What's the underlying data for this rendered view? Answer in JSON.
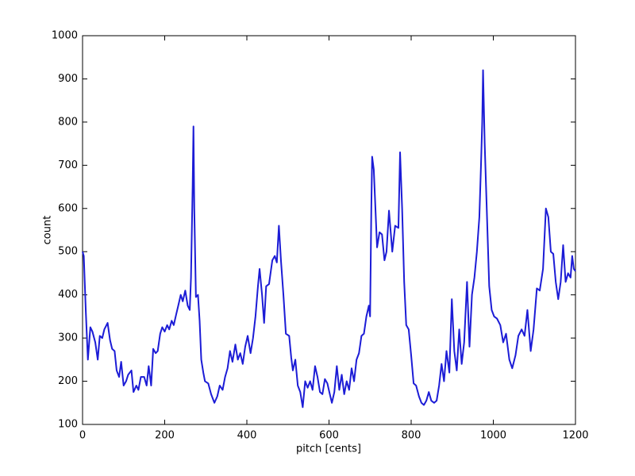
{
  "chart_data": {
    "type": "line",
    "x_label": "pitch [cents]",
    "y_label": "count",
    "xlim": [
      0,
      1200
    ],
    "ylim": [
      100,
      1000
    ],
    "xticks": [
      0,
      200,
      400,
      600,
      800,
      1000,
      1200
    ],
    "yticks": [
      100,
      200,
      300,
      400,
      500,
      600,
      700,
      800,
      900,
      1000
    ],
    "grid": false,
    "x": [
      0,
      3,
      8,
      13,
      19,
      24,
      31,
      37,
      42,
      48,
      53,
      61,
      67,
      72,
      78,
      83,
      89,
      94,
      100,
      106,
      111,
      119,
      124,
      131,
      136,
      142,
      150,
      156,
      161,
      167,
      172,
      178,
      183,
      189,
      194,
      200,
      206,
      211,
      217,
      222,
      228,
      233,
      239,
      244,
      250,
      256,
      261,
      264,
      268,
      270,
      272,
      276,
      281,
      285,
      289,
      294,
      298,
      306,
      313,
      321,
      328,
      334,
      341,
      347,
      353,
      359,
      365,
      372,
      378,
      384,
      390,
      396,
      402,
      409,
      415,
      421,
      427,
      431,
      437,
      442,
      447,
      454,
      462,
      468,
      473,
      478,
      483,
      489,
      495,
      503,
      508,
      512,
      518,
      524,
      530,
      536,
      542,
      548,
      554,
      560,
      566,
      572,
      578,
      584,
      590,
      596,
      602,
      607,
      613,
      619,
      625,
      631,
      637,
      643,
      649,
      655,
      661,
      667,
      673,
      679,
      685,
      691,
      697,
      700,
      703,
      705,
      709,
      717,
      723,
      729,
      735,
      740,
      746,
      754,
      761,
      769,
      773,
      778,
      783,
      788,
      794,
      800,
      806,
      812,
      819,
      825,
      831,
      837,
      843,
      849,
      856,
      862,
      868,
      874,
      880,
      886,
      893,
      899,
      905,
      911,
      917,
      923,
      929,
      936,
      942,
      948,
      954,
      960,
      966,
      970,
      973,
      975,
      979,
      984,
      990,
      996,
      1002,
      1009,
      1017,
      1024,
      1031,
      1039,
      1046,
      1054,
      1061,
      1069,
      1076,
      1083,
      1091,
      1098,
      1106,
      1113,
      1121,
      1128,
      1134,
      1140,
      1146,
      1152,
      1158,
      1164,
      1170,
      1176,
      1182,
      1188,
      1192,
      1196,
      1200
    ],
    "series": [
      {
        "color": "#1c1cd6",
        "values": [
          500,
          490,
          360,
          250,
          325,
          315,
          290,
          250,
          305,
          300,
          320,
          335,
          295,
          275,
          270,
          225,
          210,
          245,
          190,
          200,
          215,
          225,
          175,
          190,
          180,
          210,
          210,
          190,
          235,
          190,
          275,
          265,
          270,
          310,
          325,
          315,
          330,
          320,
          340,
          330,
          355,
          375,
          400,
          385,
          410,
          375,
          365,
          440,
          650,
          790,
          600,
          395,
          400,
          340,
          250,
          220,
          200,
          195,
          170,
          150,
          165,
          190,
          180,
          210,
          230,
          270,
          245,
          285,
          250,
          265,
          240,
          280,
          305,
          265,
          300,
          350,
          420,
          460,
          400,
          335,
          420,
          425,
          480,
          490,
          475,
          560,
          480,
          400,
          310,
          305,
          255,
          225,
          250,
          190,
          175,
          140,
          200,
          185,
          200,
          180,
          235,
          210,
          175,
          170,
          205,
          195,
          170,
          150,
          175,
          235,
          180,
          215,
          170,
          200,
          180,
          230,
          200,
          250,
          265,
          305,
          310,
          350,
          375,
          350,
          600,
          720,
          690,
          510,
          545,
          540,
          480,
          500,
          595,
          500,
          560,
          555,
          730,
          600,
          430,
          330,
          320,
          260,
          195,
          190,
          165,
          150,
          145,
          155,
          175,
          155,
          150,
          155,
          190,
          240,
          200,
          270,
          220,
          390,
          270,
          225,
          320,
          240,
          290,
          430,
          280,
          400,
          440,
          500,
          580,
          700,
          800,
          920,
          750,
          600,
          420,
          365,
          350,
          345,
          330,
          290,
          310,
          250,
          230,
          260,
          305,
          320,
          305,
          365,
          270,
          320,
          415,
          410,
          460,
          600,
          580,
          500,
          495,
          430,
          390,
          430,
          515,
          430,
          450,
          440,
          490,
          460,
          455
        ]
      }
    ]
  }
}
